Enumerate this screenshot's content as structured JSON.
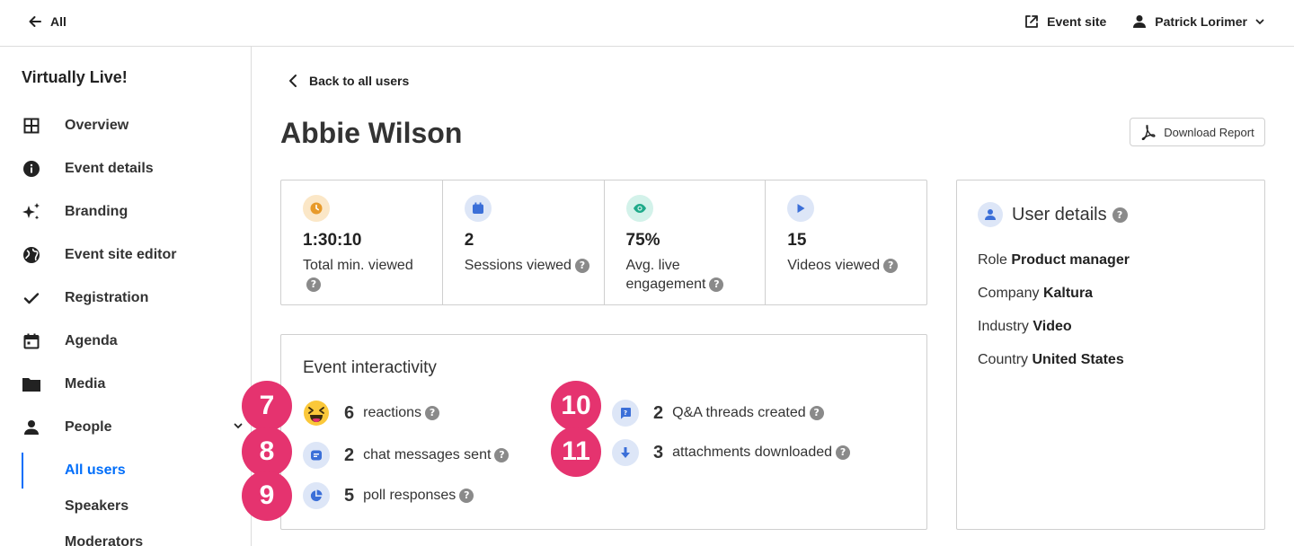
{
  "topbar": {
    "back_label": "All",
    "event_site_label": "Event site",
    "user_name": "Patrick Lorimer"
  },
  "sidebar": {
    "event_name": "Virtually Live!",
    "items": [
      {
        "label": "Overview",
        "icon": "grid-icon"
      },
      {
        "label": "Event details",
        "icon": "info-icon"
      },
      {
        "label": "Branding",
        "icon": "sparkle-icon"
      },
      {
        "label": "Event site editor",
        "icon": "globe-icon"
      },
      {
        "label": "Registration",
        "icon": "check-icon"
      },
      {
        "label": "Agenda",
        "icon": "calendar-icon"
      },
      {
        "label": "Media",
        "icon": "folder-icon"
      },
      {
        "label": "People",
        "icon": "person-icon"
      }
    ],
    "sub_items": [
      {
        "label": "All users",
        "active": true
      },
      {
        "label": "Speakers",
        "active": false
      },
      {
        "label": "Moderators",
        "active": false
      }
    ]
  },
  "main": {
    "back_label": "Back to all users",
    "title": "Abbie Wilson",
    "download_label": "Download Report",
    "stats": [
      {
        "value": "1:30:10",
        "label": "Total min. viewed",
        "icon": "clock-icon",
        "icon_bg": "#fbe7c7",
        "icon_color": "#e79a2a"
      },
      {
        "value": "2",
        "label": "Sessions viewed",
        "icon": "calendar-icon",
        "icon_bg": "#dde6f7",
        "icon_color": "#3b6fd8"
      },
      {
        "value": "75%",
        "label": "Avg. live engagement",
        "icon": "eye-icon",
        "icon_bg": "#d3f2ea",
        "icon_color": "#1faa8a"
      },
      {
        "value": "15",
        "label": "Videos viewed",
        "icon": "play-icon",
        "icon_bg": "#dde6f7",
        "icon_color": "#3b6fd8"
      }
    ],
    "interactivity": {
      "title": "Event interactivity",
      "items": [
        {
          "badge": "7",
          "value": "6",
          "label": "reactions",
          "icon": "laughing-emoji-icon"
        },
        {
          "badge": "8",
          "value": "2",
          "label": "chat messages sent",
          "icon": "chat-icon"
        },
        {
          "badge": "9",
          "value": "5",
          "label": "poll responses",
          "icon": "pie-icon"
        },
        {
          "badge": "10",
          "value": "2",
          "label": "Q&A threads created",
          "icon": "qa-icon"
        },
        {
          "badge": "11",
          "value": "3",
          "label": "attachments downloaded",
          "icon": "download-arrow-icon"
        }
      ]
    },
    "user_details": {
      "title": "User details",
      "rows": [
        {
          "key": "Role",
          "value": "Product manager"
        },
        {
          "key": "Company",
          "value": "Kaltura"
        },
        {
          "key": "Industry",
          "value": "Video"
        },
        {
          "key": "Country",
          "value": "United States"
        }
      ]
    }
  }
}
